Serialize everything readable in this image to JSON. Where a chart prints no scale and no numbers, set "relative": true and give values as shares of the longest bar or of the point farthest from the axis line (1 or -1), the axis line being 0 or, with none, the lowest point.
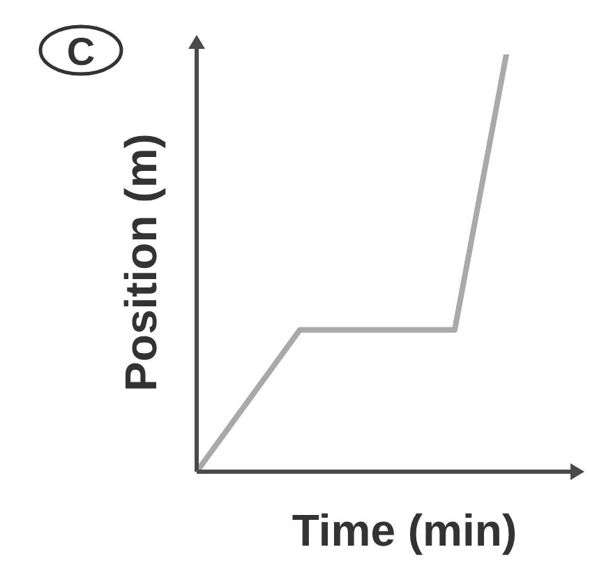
{
  "chart_data": {
    "type": "line",
    "xlabel": "Time (min)",
    "ylabel": "Position (m)",
    "annotations": [
      "C"
    ],
    "relative": true,
    "marker": "none",
    "categories": [
      null,
      null,
      null,
      null,
      null,
      null,
      null,
      null
    ],
    "series": [
      {
        "color": "#a9a9a9",
        "values": [
          0,
          0.17,
          0.34,
          0.34,
          0.34,
          0.34,
          1,
          null
        ]
      }
    ]
  }
}
